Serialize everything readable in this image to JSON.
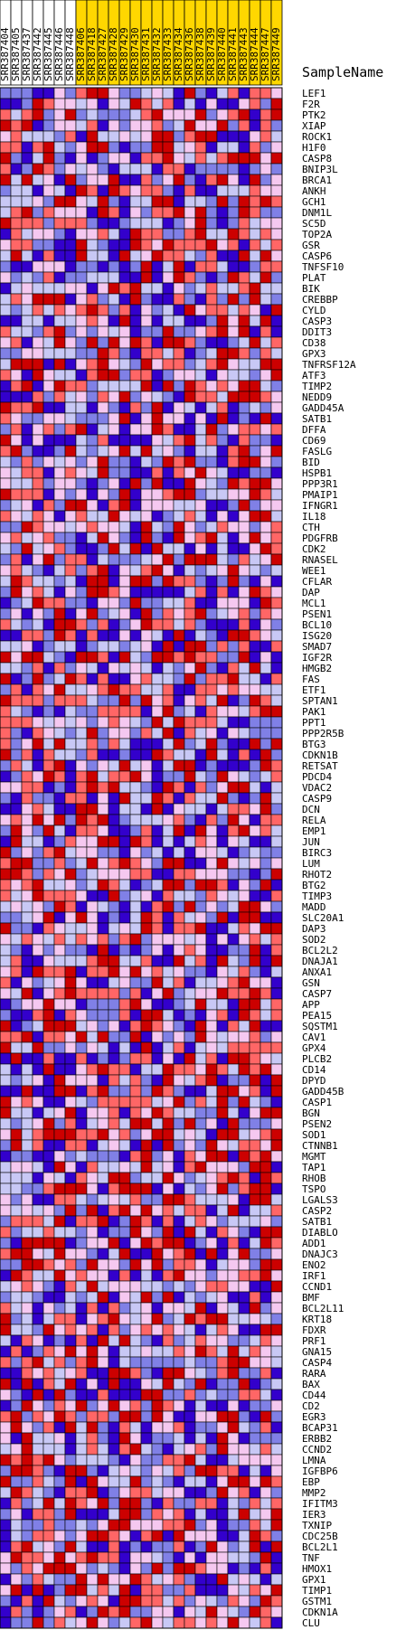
{
  "chart_data": {
    "type": "heatmap",
    "title": "SampleName",
    "colors": {
      "group_a": "#ffffff",
      "group_b": "#ffd700",
      "palette": [
        "#3300cc",
        "#8080e6",
        "#c8c8f5",
        "#f5c8f0",
        "#ff6666",
        "#cc0000"
      ]
    },
    "samples": [
      {
        "name": "SRR387404",
        "group": "a"
      },
      {
        "name": "SRR387405",
        "group": "a"
      },
      {
        "name": "SRR387437",
        "group": "a"
      },
      {
        "name": "SRR387442",
        "group": "a"
      },
      {
        "name": "SRR387445",
        "group": "a"
      },
      {
        "name": "SRR387446",
        "group": "a"
      },
      {
        "name": "SRR387448",
        "group": "a"
      },
      {
        "name": "SRR387406",
        "group": "b"
      },
      {
        "name": "SRR387418",
        "group": "b"
      },
      {
        "name": "SRR387427",
        "group": "b"
      },
      {
        "name": "SRR387428",
        "group": "b"
      },
      {
        "name": "SRR387429",
        "group": "b"
      },
      {
        "name": "SRR387430",
        "group": "b"
      },
      {
        "name": "SRR387431",
        "group": "b"
      },
      {
        "name": "SRR387432",
        "group": "b"
      },
      {
        "name": "SRR387433",
        "group": "b"
      },
      {
        "name": "SRR387434",
        "group": "b"
      },
      {
        "name": "SRR387436",
        "group": "b"
      },
      {
        "name": "SRR387438",
        "group": "b"
      },
      {
        "name": "SRR387439",
        "group": "b"
      },
      {
        "name": "SRR387440",
        "group": "b"
      },
      {
        "name": "SRR387441",
        "group": "b"
      },
      {
        "name": "SRR387443",
        "group": "b"
      },
      {
        "name": "SRR387444",
        "group": "b"
      },
      {
        "name": "SRR387447",
        "group": "b"
      },
      {
        "name": "SRR387449",
        "group": "b"
      }
    ],
    "genes": [
      "LEF1",
      "F2R",
      "PTK2",
      "XIAP",
      "ROCK1",
      "H1F0",
      "CASP8",
      "BNIP3L",
      "BRCA1",
      "ANKH",
      "GCH1",
      "DNM1L",
      "SC5D",
      "TOP2A",
      "GSR",
      "CASP6",
      "TNFSF10",
      "PLAT",
      "BIK",
      "CREBBP",
      "CYLD",
      "CASP3",
      "DDIT3",
      "CD38",
      "GPX3",
      "TNFRSF12A",
      "ATF3",
      "TIMP2",
      "NEDD9",
      "GADD45A",
      "SATB1",
      "DFFA",
      "CD69",
      "FASLG",
      "BID",
      "HSPB1",
      "PPP3R1",
      "PMAIP1",
      "IFNGR1",
      "IL18",
      "CTH",
      "PDGFRB",
      "CDK2",
      "RNASEL",
      "WEE1",
      "CFLAR",
      "DAP",
      "MCL1",
      "PSEN1",
      "BCL10",
      "ISG20",
      "SMAD7",
      "IGF2R",
      "HMGB2",
      "FAS",
      "ETF1",
      "SPTAN1",
      "PAK1",
      "PPT1",
      "PPP2R5B",
      "BTG3",
      "CDKN1B",
      "RETSAT",
      "PDCD4",
      "VDAC2",
      "CASP9",
      "DCN",
      "RELA",
      "EMP1",
      "JUN",
      "BIRC3",
      "LUM",
      "RHOT2",
      "BTG2",
      "TIMP3",
      "MADD",
      "SLC20A1",
      "DAP3",
      "SOD2",
      "BCL2L2",
      "DNAJA1",
      "ANXA1",
      "GSN",
      "CASP7",
      "APP",
      "PEA15",
      "SQSTM1",
      "CAV1",
      "GPX4",
      "PLCB2",
      "CD14",
      "DPYD",
      "GADD45B",
      "CASP1",
      "BGN",
      "PSEN2",
      "SOD1",
      "CTNNB1",
      "MGMT",
      "TAP1",
      "RHOB",
      "TSPO",
      "LGALS3",
      "CASP2",
      "SATB1",
      "DIABLO",
      "ADD1",
      "DNAJC3",
      "ENO2",
      "IRF1",
      "CCND1",
      "BMF",
      "BCL2L11",
      "KRT18",
      "FDXR",
      "PRF1",
      "GNA15",
      "CASP4",
      "RARA",
      "BAX",
      "CD44",
      "CD2",
      "EGR3",
      "BCAP31",
      "ERBB2",
      "CCND2",
      "LMNA",
      "IGFBP6",
      "EBP",
      "MMP2",
      "IFITM3",
      "IER3",
      "TXNIP",
      "CDC25B",
      "BCL2L1",
      "TNF",
      "HMOX1",
      "GPX1",
      "TIMP1",
      "GSTM1",
      "CDKN1A",
      "CLU"
    ],
    "value_levels": 6,
    "value_range": [
      0,
      5
    ],
    "values_note": "",
    "seed": 1997
  }
}
